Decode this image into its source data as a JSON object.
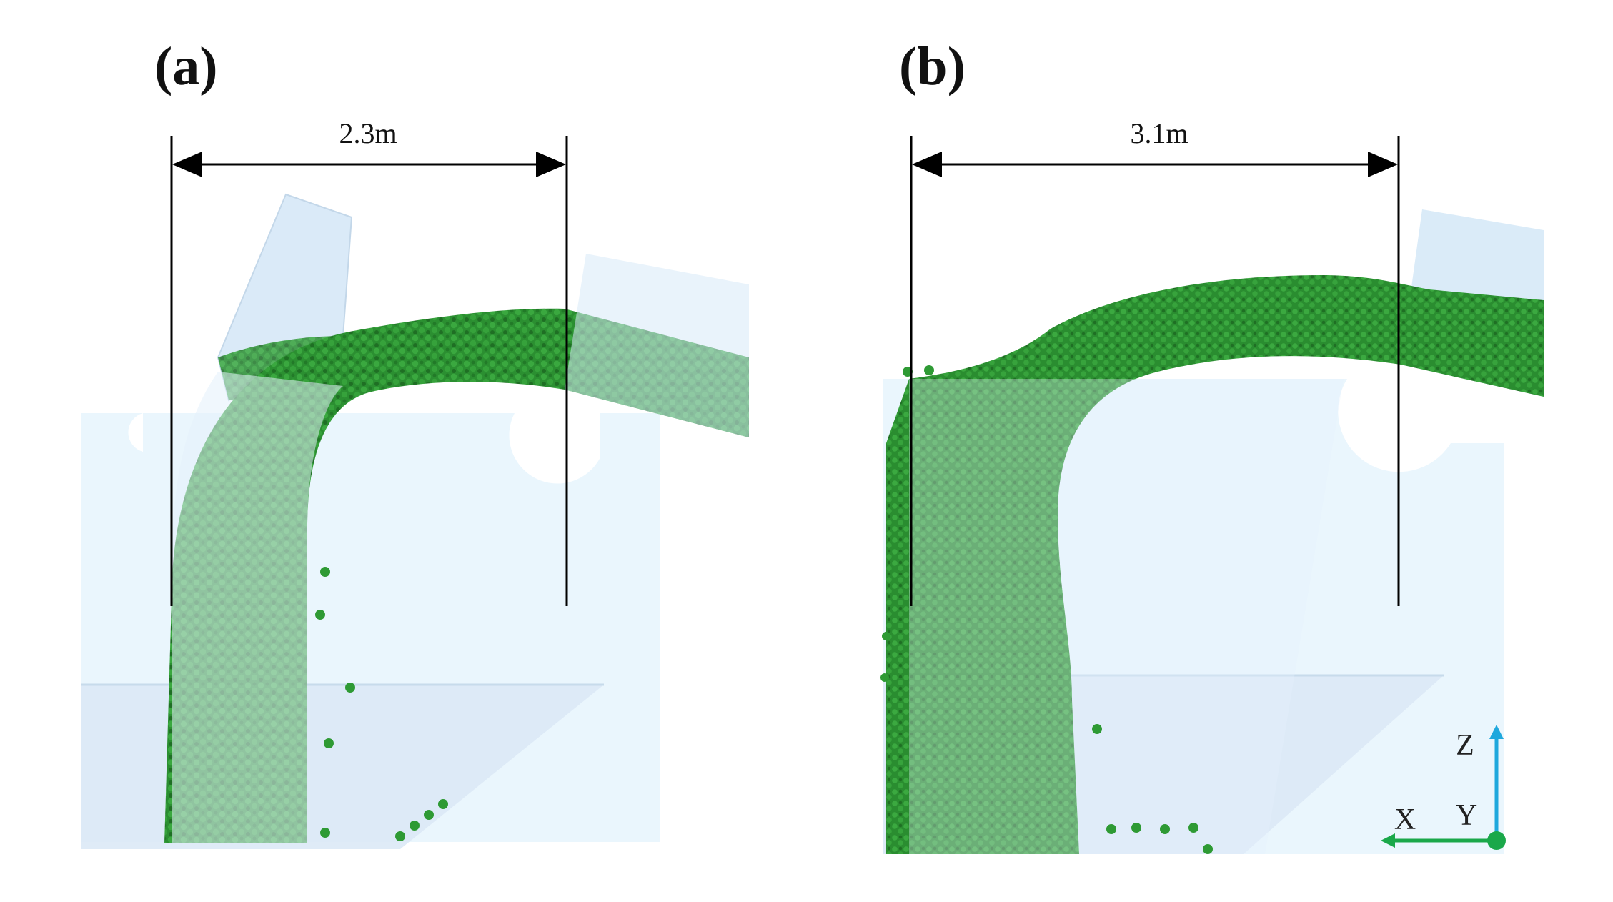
{
  "panels": [
    {
      "label": "(a)",
      "dimension": "2.3m"
    },
    {
      "label": "(b)",
      "dimension": "3.1m"
    }
  ],
  "axes_triad": {
    "x": "X",
    "y": "Y",
    "z": "Z"
  },
  "colors": {
    "particle": "#2e9a34",
    "particle_dark": "#1f6f24",
    "chute": "#dceefb",
    "hopper": "#e8f5fd",
    "dimension_line": "#000000",
    "axis_z": "#1fa8dd",
    "axis_x": "#1aa84a"
  }
}
